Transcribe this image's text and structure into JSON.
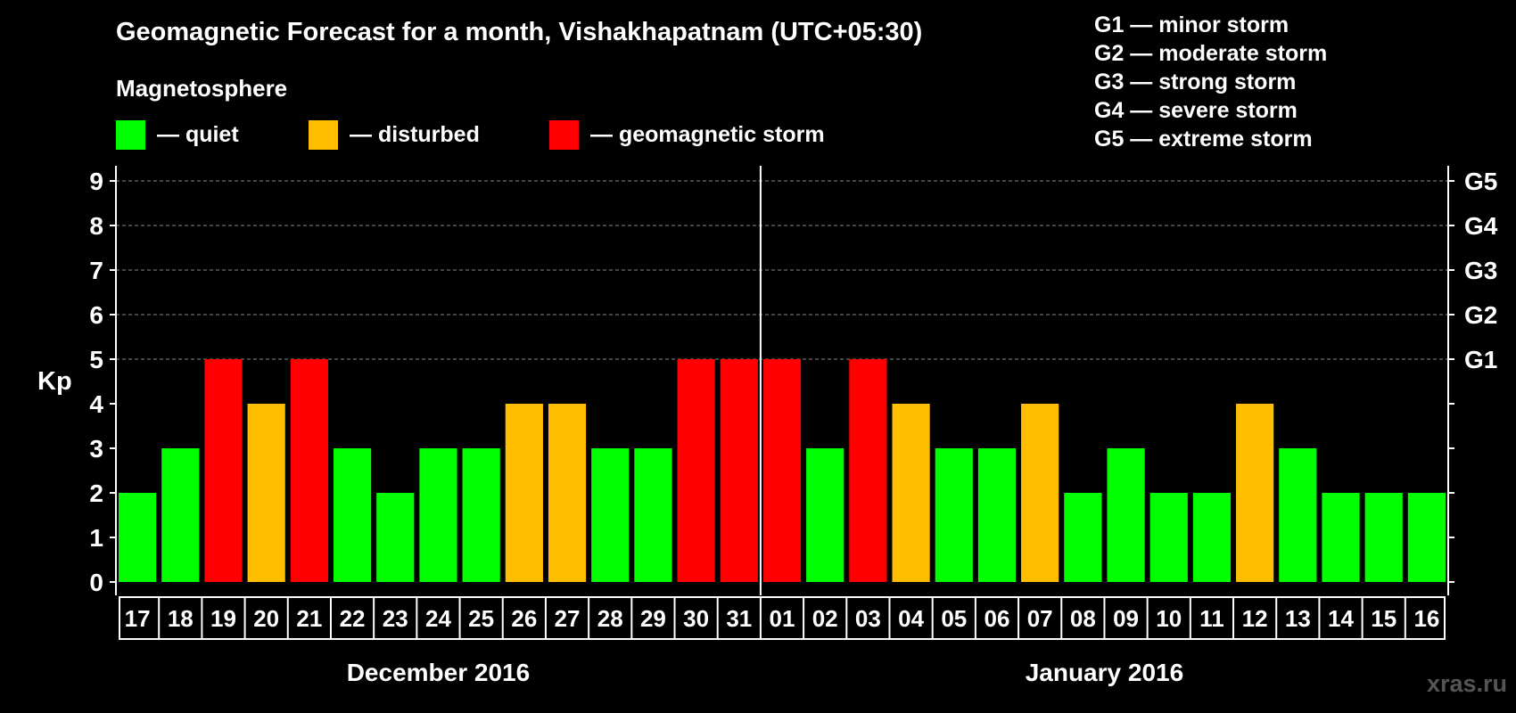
{
  "title": "Geomagnetic Forecast for a month, Vishakhapatnam (UTC+05:30)",
  "legend": {
    "heading": "Magnetosphere",
    "items": [
      {
        "label": "— quiet",
        "color": "#00ff00"
      },
      {
        "label": "— disturbed",
        "color": "#ffbf00"
      },
      {
        "label": "— geomagnetic storm",
        "color": "#ff0000"
      }
    ]
  },
  "storm_levels": [
    "G1 — minor storm",
    "G2 — moderate storm",
    "G3 — strong storm",
    "G4 — severe storm",
    "G5 — extreme storm"
  ],
  "watermark": "xras.ru",
  "chart_data": {
    "type": "bar",
    "ylabel": "Kp",
    "ylim": [
      0,
      9
    ],
    "yticks": [
      0,
      1,
      2,
      3,
      4,
      5,
      6,
      7,
      8,
      9
    ],
    "right_axis_labels": [
      {
        "value": 5,
        "label": "G1"
      },
      {
        "value": 6,
        "label": "G2"
      },
      {
        "value": 7,
        "label": "G3"
      },
      {
        "value": 8,
        "label": "G4"
      },
      {
        "value": 9,
        "label": "G5"
      }
    ],
    "gridlines": [
      5,
      6,
      7,
      8,
      9
    ],
    "categories": [
      "17",
      "18",
      "19",
      "20",
      "21",
      "22",
      "23",
      "24",
      "25",
      "26",
      "27",
      "28",
      "29",
      "30",
      "31",
      "01",
      "02",
      "03",
      "04",
      "05",
      "06",
      "07",
      "08",
      "09",
      "10",
      "11",
      "12",
      "13",
      "14",
      "15",
      "16"
    ],
    "values": [
      2,
      3,
      5,
      4,
      5,
      3,
      2,
      3,
      3,
      4,
      4,
      3,
      3,
      5,
      5,
      5,
      3,
      5,
      4,
      3,
      3,
      4,
      2,
      3,
      2,
      2,
      4,
      3,
      2,
      2,
      2
    ],
    "colors": {
      "quiet": "#00ff00",
      "disturbed": "#ffbf00",
      "storm": "#ff0000"
    },
    "months": [
      {
        "label": "December 2016",
        "start_index": 0,
        "end_index": 14
      },
      {
        "label": "January 2016",
        "start_index": 15,
        "end_index": 30
      }
    ]
  }
}
